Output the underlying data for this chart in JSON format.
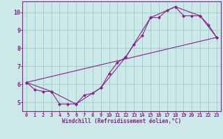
{
  "xlabel": "Windchill (Refroidissement éolien,°C)",
  "background_color": "#cce8e8",
  "grid_color": "#99cccc",
  "line_color": "#882288",
  "marker_color": "#882288",
  "xlim": [
    -0.5,
    23.5
  ],
  "ylim": [
    4.5,
    10.6
  ],
  "yticks": [
    5,
    6,
    7,
    8,
    9,
    10
  ],
  "xticks": [
    0,
    1,
    2,
    3,
    4,
    5,
    6,
    7,
    8,
    9,
    10,
    11,
    12,
    13,
    14,
    15,
    16,
    17,
    18,
    19,
    20,
    21,
    22,
    23
  ],
  "series1_x": [
    0,
    1,
    2,
    3,
    4,
    5,
    6,
    7,
    8,
    9,
    10,
    11,
    12,
    13,
    14,
    15,
    16,
    17,
    18,
    19,
    20,
    21,
    22,
    23
  ],
  "series1_y": [
    6.1,
    5.7,
    5.6,
    5.6,
    4.9,
    4.9,
    4.9,
    5.4,
    5.5,
    5.8,
    6.6,
    7.2,
    7.5,
    8.2,
    8.7,
    9.7,
    9.7,
    10.1,
    10.3,
    9.8,
    9.8,
    9.8,
    9.3,
    8.6
  ],
  "series2_x": [
    0,
    3,
    6,
    9,
    12,
    15,
    18,
    21,
    23
  ],
  "series2_y": [
    6.1,
    5.6,
    4.9,
    5.8,
    7.5,
    9.7,
    10.3,
    9.8,
    8.6
  ],
  "series3_x": [
    0,
    23
  ],
  "series3_y": [
    6.1,
    8.6
  ]
}
